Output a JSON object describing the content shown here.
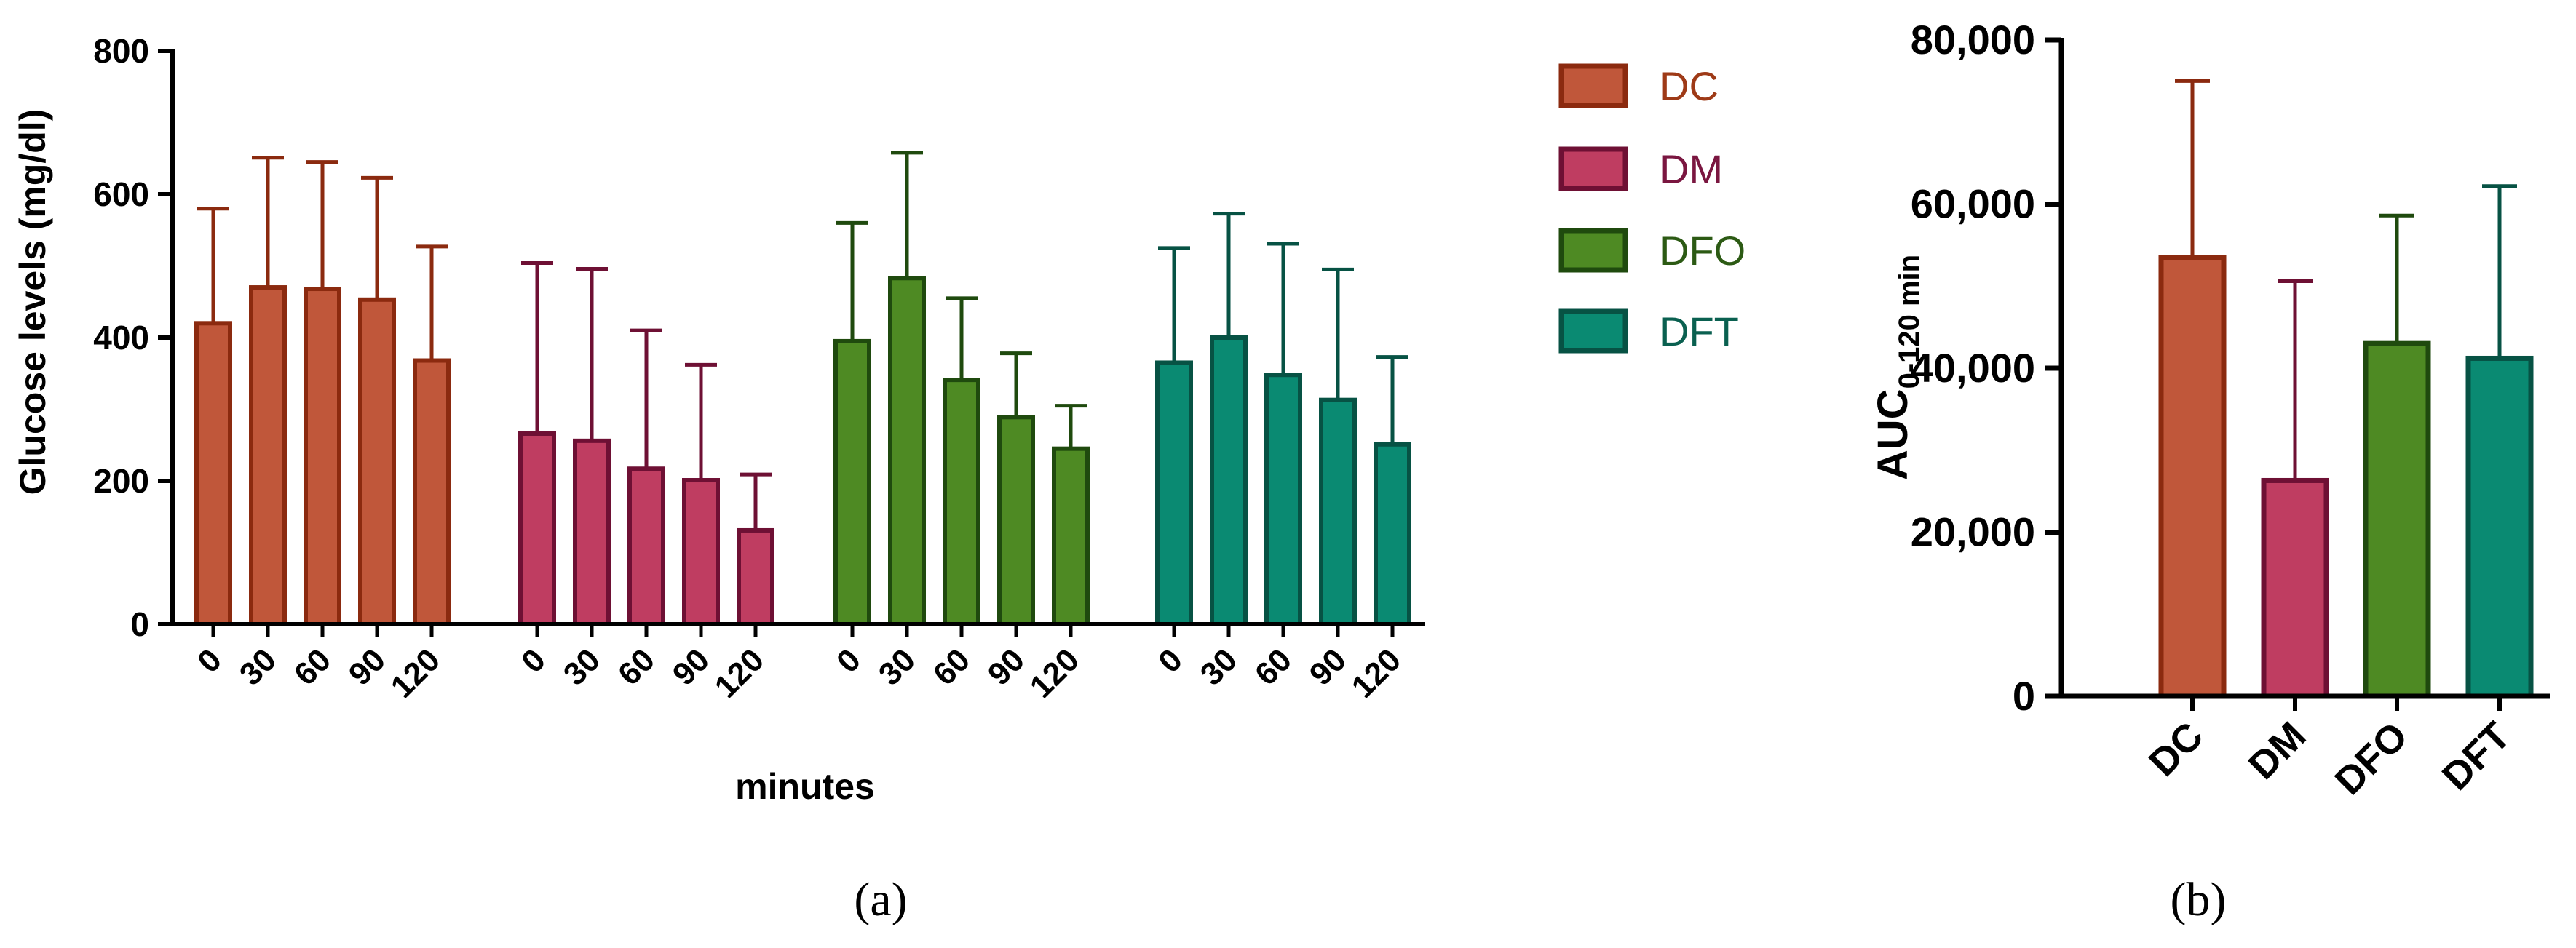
{
  "colors": {
    "DC": {
      "fill": "#C0573A",
      "stroke": "#8B2A0F",
      "text": "#9E3A17"
    },
    "DM": {
      "fill": "#BF3D61",
      "stroke": "#6E1034",
      "text": "#7A1640"
    },
    "DFO": {
      "fill": "#4E8A23",
      "stroke": "#1F4A0E",
      "text": "#2C5A14"
    },
    "DFT": {
      "fill": "#0A8A72",
      "stroke": "#075244",
      "text": "#0A6050"
    },
    "axis": "#000000"
  },
  "panel_labels": {
    "a": "(a)",
    "b": "(b)"
  },
  "chart_data": [
    {
      "type": "bar",
      "ylabel": "Glucose levels (mg/dl)",
      "xlabel": "minutes",
      "ylim": [
        0,
        800
      ],
      "yticks": [
        "0",
        "200",
        "400",
        "600",
        "800"
      ],
      "groups": [
        "DC",
        "DM",
        "DFO",
        "DFT"
      ],
      "categories": [
        "0",
        "30",
        "60",
        "90",
        "120"
      ],
      "series": [
        {
          "name": "DC",
          "values": [
            420,
            470,
            468,
            453,
            368
          ],
          "error": [
            160,
            181,
            177,
            170,
            159
          ]
        },
        {
          "name": "DM",
          "values": [
            266,
            256,
            217,
            201,
            131
          ],
          "error": [
            238,
            240,
            193,
            161,
            78
          ]
        },
        {
          "name": "DFO",
          "values": [
            395,
            483,
            341,
            289,
            245
          ],
          "error": [
            165,
            175,
            114,
            89,
            60
          ]
        },
        {
          "name": "DFT",
          "values": [
            365,
            400,
            348,
            313,
            251
          ],
          "error": [
            160,
            173,
            183,
            182,
            122
          ]
        }
      ],
      "legend": {
        "placement": "right",
        "entries": [
          "DC",
          "DM",
          "DFO",
          "DFT"
        ]
      },
      "grid": false
    },
    {
      "type": "bar",
      "ylabel_main": "AUC",
      "ylabel_sub": "0-120 min",
      "ylim": [
        0,
        80000
      ],
      "yticks": [
        "0",
        "20,000",
        "40,000",
        "60,000",
        "80,000"
      ],
      "categories": [
        "DC",
        "DM",
        "DFO",
        "DFT"
      ],
      "values": [
        53500,
        26300,
        43000,
        41200
      ],
      "error": [
        21500,
        24300,
        15600,
        21000
      ],
      "grid": false
    }
  ]
}
